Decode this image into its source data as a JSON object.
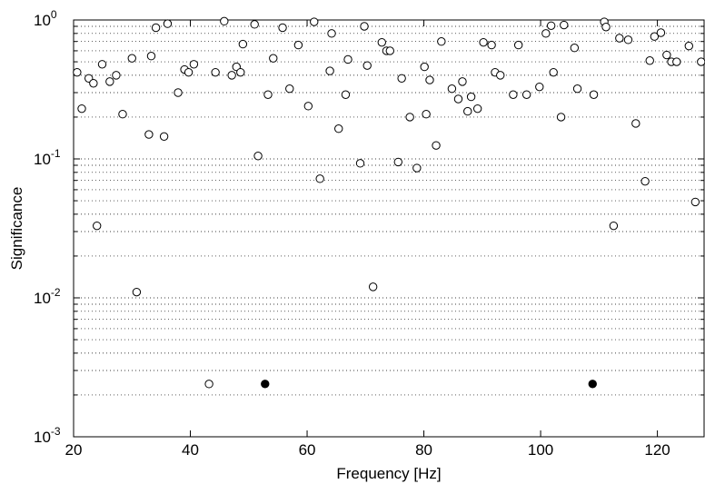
{
  "chart_data": {
    "type": "scatter",
    "title": "",
    "xlabel": "Frequency [Hz]",
    "ylabel": "Significance",
    "xlim": [
      20,
      128
    ],
    "ylim": [
      0.001,
      1
    ],
    "yscale": "log",
    "grid": "dotted, y minor and major",
    "xticks": [
      "20",
      "40",
      "60",
      "80",
      "100",
      "120"
    ],
    "yticks": [
      {
        "base": "10",
        "exp": "-3"
      },
      {
        "base": "10",
        "exp": "-2"
      },
      {
        "base": "10",
        "exp": "-1"
      },
      {
        "base": "10",
        "exp": "0"
      }
    ],
    "marker_colors": {
      "open": "#ffffff",
      "filled": "#000000",
      "edge": "#000000"
    },
    "open_points": [
      [
        20.6,
        0.42
      ],
      [
        21.4,
        0.23
      ],
      [
        22.6,
        0.38
      ],
      [
        23.4,
        0.35
      ],
      [
        24.0,
        0.033
      ],
      [
        24.9,
        0.48
      ],
      [
        26.2,
        0.36
      ],
      [
        27.3,
        0.4
      ],
      [
        28.4,
        0.21
      ],
      [
        30.0,
        0.53
      ],
      [
        30.8,
        0.011
      ],
      [
        32.9,
        0.15
      ],
      [
        33.3,
        0.55
      ],
      [
        34.1,
        0.88
      ],
      [
        35.5,
        0.145
      ],
      [
        36.1,
        0.94
      ],
      [
        37.9,
        0.3
      ],
      [
        39.0,
        0.44
      ],
      [
        39.7,
        0.42
      ],
      [
        40.6,
        0.48
      ],
      [
        43.2,
        0.0024
      ],
      [
        44.3,
        0.42
      ],
      [
        45.8,
        0.98
      ],
      [
        47.1,
        0.4
      ],
      [
        47.9,
        0.46
      ],
      [
        48.6,
        0.42
      ],
      [
        49.0,
        0.67
      ],
      [
        51.0,
        0.93
      ],
      [
        51.6,
        0.105
      ],
      [
        53.3,
        0.29
      ],
      [
        54.2,
        0.53
      ],
      [
        55.8,
        0.88
      ],
      [
        57.0,
        0.32
      ],
      [
        58.5,
        0.66
      ],
      [
        60.2,
        0.24
      ],
      [
        61.2,
        0.97
      ],
      [
        62.2,
        0.072
      ],
      [
        63.9,
        0.43
      ],
      [
        64.2,
        0.8
      ],
      [
        65.4,
        0.165
      ],
      [
        66.6,
        0.29
      ],
      [
        67.0,
        0.52
      ],
      [
        69.1,
        0.093
      ],
      [
        69.8,
        0.9
      ],
      [
        70.3,
        0.47
      ],
      [
        71.3,
        0.012
      ],
      [
        72.8,
        0.69
      ],
      [
        73.6,
        0.6
      ],
      [
        74.2,
        0.6
      ],
      [
        75.6,
        0.095
      ],
      [
        76.2,
        0.38
      ],
      [
        77.6,
        0.2
      ],
      [
        78.8,
        0.086
      ],
      [
        80.1,
        0.46
      ],
      [
        80.4,
        0.21
      ],
      [
        81.0,
        0.37
      ],
      [
        82.1,
        0.125
      ],
      [
        83.0,
        0.7
      ],
      [
        84.8,
        0.32
      ],
      [
        85.9,
        0.27
      ],
      [
        86.6,
        0.36
      ],
      [
        87.5,
        0.22
      ],
      [
        88.1,
        0.28
      ],
      [
        89.2,
        0.23
      ],
      [
        90.2,
        0.69
      ],
      [
        91.6,
        0.66
      ],
      [
        92.2,
        0.42
      ],
      [
        93.1,
        0.4
      ],
      [
        95.3,
        0.29
      ],
      [
        96.2,
        0.66
      ],
      [
        97.6,
        0.29
      ],
      [
        99.8,
        0.33
      ],
      [
        100.9,
        0.8
      ],
      [
        101.8,
        0.91
      ],
      [
        102.2,
        0.42
      ],
      [
        103.5,
        0.2
      ],
      [
        104.0,
        0.92
      ],
      [
        105.8,
        0.63
      ],
      [
        106.3,
        0.32
      ],
      [
        109.1,
        0.29
      ],
      [
        110.9,
        0.97
      ],
      [
        111.2,
        0.89
      ],
      [
        112.5,
        0.033
      ],
      [
        113.5,
        0.74
      ],
      [
        115.0,
        0.72
      ],
      [
        116.3,
        0.18
      ],
      [
        117.9,
        0.069
      ],
      [
        118.7,
        0.51
      ],
      [
        119.5,
        0.76
      ],
      [
        120.6,
        0.81
      ],
      [
        121.6,
        0.56
      ],
      [
        122.4,
        0.5
      ],
      [
        123.3,
        0.5
      ],
      [
        125.4,
        0.65
      ],
      [
        126.5,
        0.049
      ],
      [
        127.5,
        0.5
      ]
    ],
    "filled_points": [
      [
        52.8,
        0.0024
      ],
      [
        108.9,
        0.0024
      ]
    ]
  }
}
